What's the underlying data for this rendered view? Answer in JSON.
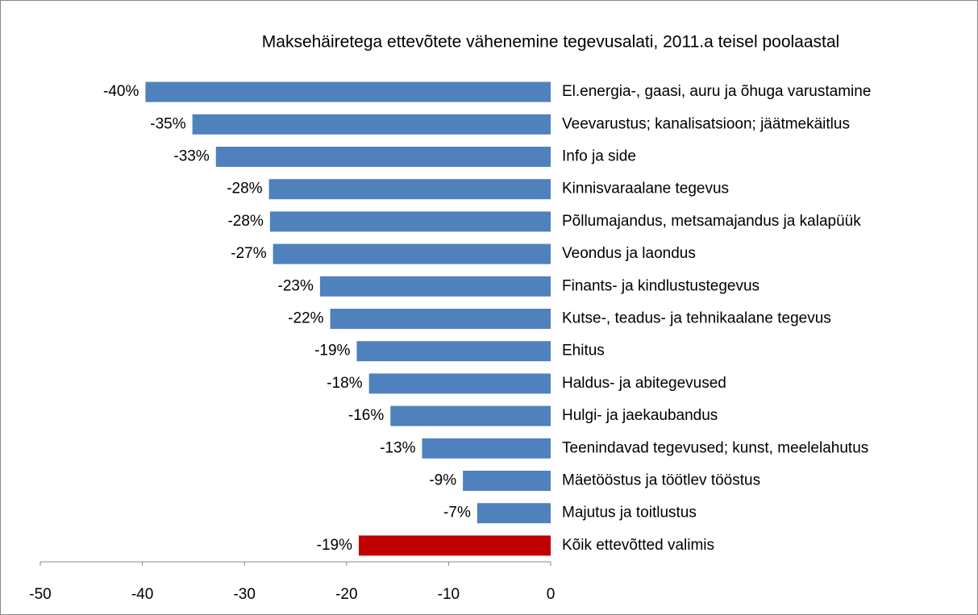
{
  "chart_data": {
    "type": "bar",
    "orientation": "horizontal",
    "title": "Maksehäiretega ettevõtete vähenemine tegevusalati, 2011.a teisel poolaastal",
    "categories": [
      "El.energia-, gaasi, auru ja õhuga varustamine",
      "Veevarustus; kanalisatsioon; jäätmekäitlus",
      "Info ja side",
      "Kinnisvaraalane tegevus",
      "Põllumajandus, metsamajandus ja kalapüük",
      "Veondus ja laondus",
      "Finants- ja kindlustustegevus",
      "Kutse-, teadus- ja tehnikaalane tegevus",
      "Ehitus",
      "Haldus- ja abitegevused",
      "Hulgi- ja jaekaubandus",
      "Teenindavad tegevused; kunst, meelelahutus",
      "Mäetööstus ja töötlev tööstus",
      "Majutus ja toitlustus",
      "Kõik ettevõtted valimis"
    ],
    "values": [
      -39.7,
      -35.1,
      -32.8,
      -27.6,
      -27.5,
      -27.2,
      -22.6,
      -21.6,
      -19.0,
      -17.8,
      -15.7,
      -12.6,
      -8.6,
      -7.2,
      -18.8
    ],
    "value_labels": [
      "-40%",
      "-35%",
      "-33%",
      "-28%",
      "-28%",
      "-27%",
      "-23%",
      "-22%",
      "-19%",
      "-18%",
      "-16%",
      "-13%",
      "-9%",
      "-7%",
      "-19%"
    ],
    "colors": [
      "#4f81bd",
      "#4f81bd",
      "#4f81bd",
      "#4f81bd",
      "#4f81bd",
      "#4f81bd",
      "#4f81bd",
      "#4f81bd",
      "#4f81bd",
      "#4f81bd",
      "#4f81bd",
      "#4f81bd",
      "#4f81bd",
      "#4f81bd",
      "#c00000"
    ],
    "xlim": [
      -50,
      0
    ],
    "xticks": [
      -50,
      -40,
      -30,
      -20,
      -10,
      0
    ]
  }
}
